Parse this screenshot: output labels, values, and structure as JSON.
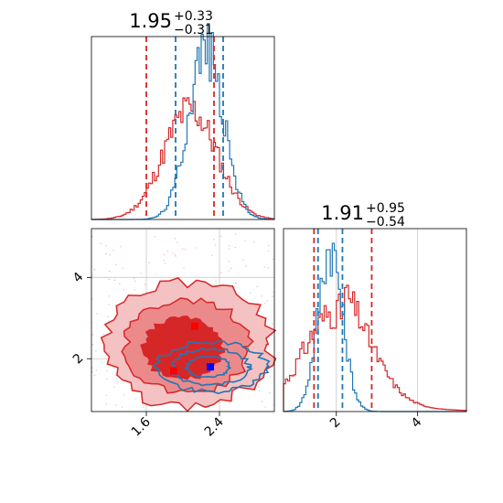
{
  "colors": {
    "red": "#d62728",
    "blue": "#1f77b4",
    "marker_red": "#ff0000",
    "marker_blue": "#0000ff",
    "grid": "#c8c8c8"
  },
  "chart_data": [
    {
      "panel": "top-left",
      "type": "histogram",
      "parameter": "x",
      "title": {
        "median": "1.95",
        "plus": "+0.33",
        "minus": "−0.31"
      },
      "xlim": [
        1.0,
        3.0
      ],
      "quantile_lines": {
        "red": [
          1.6,
          2.34
        ],
        "blue": [
          1.92,
          2.44
        ]
      },
      "series": [
        {
          "color": "red",
          "center": 2.08,
          "sigma": 0.29,
          "peak": 0.6
        },
        {
          "color": "blue",
          "center": 2.25,
          "sigma": 0.19,
          "peak": 0.95
        }
      ]
    },
    {
      "panel": "bottom-left",
      "type": "contour",
      "xlim": [
        1.0,
        3.0
      ],
      "ylim": [
        0.7,
        5.2
      ],
      "xticks": [
        1.6,
        2.4
      ],
      "xtick_labels": [
        "1.6",
        "2.4"
      ],
      "yticks": [
        2,
        4
      ],
      "ytick_labels": [
        "2",
        "4"
      ],
      "grid": true,
      "points": [
        {
          "color": "red",
          "x": 2.13,
          "y": 2.8
        },
        {
          "color": "red",
          "x": 1.9,
          "y": 1.7
        },
        {
          "color": "blue",
          "x": 2.3,
          "y": 1.8
        }
      ]
    },
    {
      "panel": "bottom-right",
      "type": "histogram",
      "parameter": "y",
      "title": {
        "median": "1.91",
        "plus": "+0.95",
        "minus": "−0.54"
      },
      "xlim": [
        0.7,
        5.2
      ],
      "xticks": [
        2,
        4
      ],
      "xtick_labels": [
        "2",
        "4"
      ],
      "grid": true,
      "quantile_lines": {
        "red": [
          1.45,
          2.87
        ],
        "blue": [
          1.55,
          2.15
        ]
      },
      "series": [
        {
          "color": "red",
          "center": 2.0,
          "sigma": 0.8,
          "peak": 0.55
        },
        {
          "color": "blue",
          "center": 1.85,
          "sigma": 0.3,
          "peak": 0.9
        }
      ]
    }
  ]
}
